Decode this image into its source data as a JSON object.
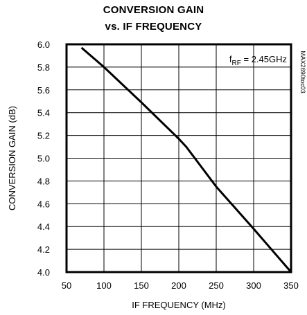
{
  "chart_data": {
    "type": "line",
    "title": "CONVERSION GAIN",
    "subtitle": "vs. IF FREQUENCY",
    "xlabel": "IF FREQUENCY (MHz)",
    "ylabel": "CONVERSION GAIN (dB)",
    "xlim": [
      50,
      350
    ],
    "ylim": [
      4.0,
      6.0
    ],
    "x_ticks": [
      50,
      100,
      150,
      200,
      250,
      300,
      350
    ],
    "y_ticks": [
      4.0,
      4.2,
      4.4,
      4.6,
      4.8,
      5.0,
      5.2,
      5.4,
      5.6,
      5.8,
      6.0
    ],
    "x_tick_labels": [
      "50",
      "100",
      "150",
      "200",
      "250",
      "300",
      "350"
    ],
    "y_tick_labels": [
      "4.0",
      "4.2",
      "4.4",
      "4.6",
      "4.8",
      "5.0",
      "5.2",
      "5.4",
      "5.6",
      "5.8",
      "6.0"
    ],
    "grid": true,
    "annotation": {
      "prefix": "f",
      "subscript": "RF",
      "suffix": " = 2.45GHz",
      "placement": "top-right"
    },
    "figure_code": "MAX2690toc03",
    "series": [
      {
        "x": [
          70,
          100,
          150,
          200,
          210,
          250,
          300,
          350
        ],
        "y": [
          5.97,
          5.8,
          5.49,
          5.17,
          5.1,
          4.75,
          4.38,
          4.0
        ]
      }
    ]
  }
}
